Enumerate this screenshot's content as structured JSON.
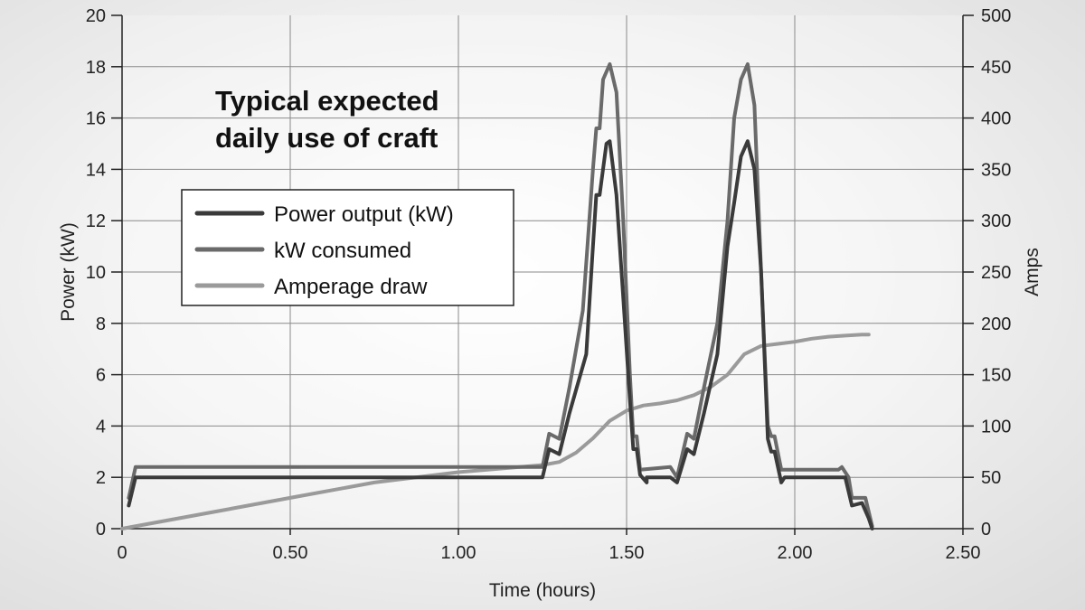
{
  "chart_data": {
    "type": "line",
    "title": "Typical expected daily use of craft",
    "xlabel": "Time (hours)",
    "ylabel": "Power (kW)",
    "y2label": "Amps",
    "xlim": [
      0,
      2.5
    ],
    "ylim": [
      0,
      20
    ],
    "y2lim": [
      0,
      500
    ],
    "x_ticks": [
      "0",
      "0.50",
      "1.00",
      "1.50",
      "2.00",
      "2.50"
    ],
    "y_ticks": [
      "0",
      "2",
      "4",
      "6",
      "8",
      "10",
      "12",
      "14",
      "16",
      "18",
      "20"
    ],
    "y2_ticks": [
      "0",
      "50",
      "100",
      "150",
      "200",
      "250",
      "300",
      "350",
      "400",
      "450",
      "500"
    ],
    "grid": true,
    "legend_position": "upper-left",
    "series": [
      {
        "name": "Power output (kW)",
        "axis": "left",
        "color": "#3a3a3a",
        "points": [
          [
            0.02,
            0.9
          ],
          [
            0.04,
            2.0
          ],
          [
            1.25,
            2.0
          ],
          [
            1.27,
            3.1
          ],
          [
            1.3,
            2.9
          ],
          [
            1.33,
            4.5
          ],
          [
            1.38,
            6.8
          ],
          [
            1.4,
            11.0
          ],
          [
            1.41,
            13.0
          ],
          [
            1.42,
            13.0
          ],
          [
            1.44,
            15.0
          ],
          [
            1.45,
            15.1
          ],
          [
            1.47,
            13.0
          ],
          [
            1.49,
            9.0
          ],
          [
            1.51,
            5.0
          ],
          [
            1.52,
            3.1
          ],
          [
            1.53,
            3.1
          ],
          [
            1.54,
            2.1
          ],
          [
            1.56,
            1.8
          ],
          [
            1.56,
            2.0
          ],
          [
            1.63,
            2.0
          ],
          [
            1.65,
            1.8
          ],
          [
            1.68,
            3.1
          ],
          [
            1.7,
            2.9
          ],
          [
            1.73,
            4.5
          ],
          [
            1.77,
            6.8
          ],
          [
            1.8,
            11.0
          ],
          [
            1.82,
            12.7
          ],
          [
            1.84,
            14.5
          ],
          [
            1.86,
            15.1
          ],
          [
            1.88,
            14.0
          ],
          [
            1.9,
            10.0
          ],
          [
            1.92,
            3.5
          ],
          [
            1.93,
            3.0
          ],
          [
            1.94,
            3.0
          ],
          [
            1.96,
            1.8
          ],
          [
            1.97,
            2.0
          ],
          [
            2.13,
            2.0
          ],
          [
            2.15,
            2.0
          ],
          [
            2.17,
            0.9
          ],
          [
            2.2,
            1.0
          ],
          [
            2.22,
            0.4
          ],
          [
            2.23,
            0.0
          ]
        ]
      },
      {
        "name": "kW consumed",
        "axis": "left",
        "color": "#6a6a6a",
        "points": [
          [
            0.02,
            1.2
          ],
          [
            0.04,
            2.4
          ],
          [
            1.25,
            2.4
          ],
          [
            1.27,
            3.7
          ],
          [
            1.3,
            3.5
          ],
          [
            1.33,
            5.5
          ],
          [
            1.37,
            8.5
          ],
          [
            1.4,
            14.0
          ],
          [
            1.41,
            15.6
          ],
          [
            1.42,
            15.6
          ],
          [
            1.43,
            17.5
          ],
          [
            1.45,
            18.1
          ],
          [
            1.47,
            17.0
          ],
          [
            1.49,
            12.0
          ],
          [
            1.51,
            6.0
          ],
          [
            1.52,
            3.6
          ],
          [
            1.53,
            3.6
          ],
          [
            1.54,
            2.3
          ],
          [
            1.63,
            2.4
          ],
          [
            1.65,
            2.0
          ],
          [
            1.68,
            3.7
          ],
          [
            1.7,
            3.5
          ],
          [
            1.73,
            5.5
          ],
          [
            1.77,
            8.0
          ],
          [
            1.8,
            12.0
          ],
          [
            1.82,
            16.0
          ],
          [
            1.84,
            17.5
          ],
          [
            1.86,
            18.1
          ],
          [
            1.88,
            16.5
          ],
          [
            1.9,
            10.0
          ],
          [
            1.92,
            4.0
          ],
          [
            1.93,
            3.6
          ],
          [
            1.94,
            3.6
          ],
          [
            1.96,
            2.3
          ],
          [
            2.13,
            2.3
          ],
          [
            2.14,
            2.4
          ],
          [
            2.16,
            2.0
          ],
          [
            2.17,
            1.2
          ],
          [
            2.21,
            1.2
          ],
          [
            2.23,
            0.1
          ]
        ]
      },
      {
        "name": "Amperage draw",
        "axis": "right",
        "color": "#9a9a9a",
        "points": [
          [
            0,
            0
          ],
          [
            0.25,
            15
          ],
          [
            0.5,
            30
          ],
          [
            0.75,
            45
          ],
          [
            1.0,
            55
          ],
          [
            1.25,
            62
          ],
          [
            1.3,
            65
          ],
          [
            1.35,
            74
          ],
          [
            1.4,
            88
          ],
          [
            1.45,
            105
          ],
          [
            1.5,
            115
          ],
          [
            1.55,
            120
          ],
          [
            1.6,
            122
          ],
          [
            1.65,
            125
          ],
          [
            1.7,
            130
          ],
          [
            1.75,
            138
          ],
          [
            1.8,
            150
          ],
          [
            1.85,
            170
          ],
          [
            1.9,
            178
          ],
          [
            1.95,
            180
          ],
          [
            2.0,
            182
          ],
          [
            2.05,
            185
          ],
          [
            2.1,
            187
          ],
          [
            2.15,
            188
          ],
          [
            2.2,
            189
          ],
          [
            2.22,
            189
          ]
        ]
      }
    ]
  }
}
